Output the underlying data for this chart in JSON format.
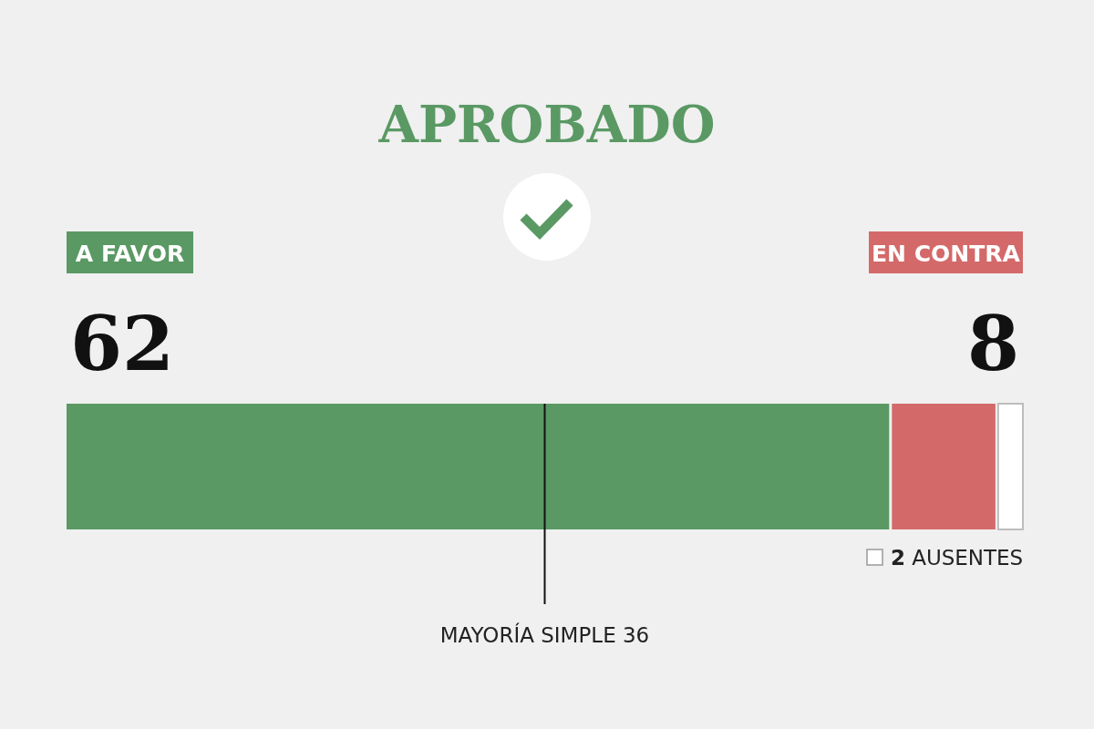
{
  "chart_data": {
    "type": "bar",
    "title": "APROBADO",
    "orientation": "horizontal",
    "stacked": true,
    "categories": [
      null
    ],
    "xlim": [
      0,
      72
    ],
    "legend": "bottom right",
    "series": [
      {
        "name": "A FAVOR",
        "color": "#5a9964",
        "values": [
          62
        ],
        "value_labels": [
          "62"
        ]
      },
      {
        "name": "EN CONTRA",
        "color": "#d4696a",
        "values": [
          8
        ],
        "value_labels": [
          "8"
        ]
      },
      {
        "name": "2 AUSENTES",
        "color": "#ffffff",
        "values": [
          2
        ]
      }
    ],
    "ref_lines": [
      {
        "axis": "x",
        "value": 36,
        "label": "MAYORÍA SIMPLE 36",
        "color": "#111111"
      }
    ]
  }
}
